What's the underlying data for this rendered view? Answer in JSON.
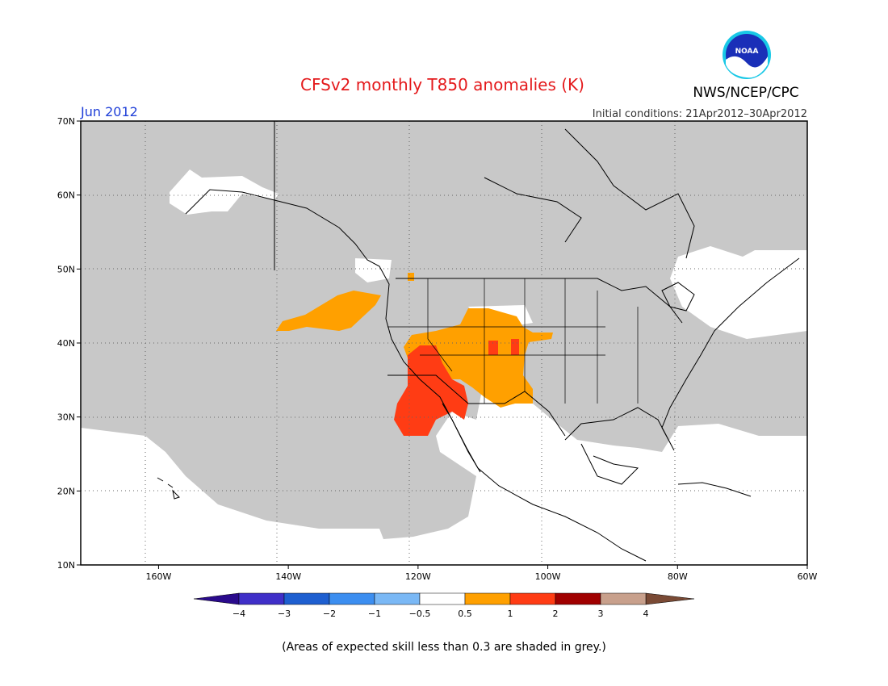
{
  "title": "CFSv2 monthly T850 anomalies (K)",
  "period": "Jun 2012",
  "initial_conditions": "Initial conditions: 21Apr2012–30Apr2012",
  "agency": "NWS/NCEP/CPC",
  "logo_text": "NOAA",
  "footnote": "(Areas of expected skill less than 0.3 are shaded in grey.)",
  "colors": {
    "land_mask_grey": "#c8c8c8",
    "coast_line": "#000000",
    "title_red": "#e41a1c",
    "period_blue": "#1f3fd8"
  },
  "map": {
    "lon_range": [
      -172,
      -60
    ],
    "lat_range": [
      10,
      70
    ],
    "lat_ticks": [
      {
        "value": 70,
        "label": "70N"
      },
      {
        "value": 60,
        "label": "60N"
      },
      {
        "value": 50,
        "label": "50N"
      },
      {
        "value": 40,
        "label": "40N"
      },
      {
        "value": 30,
        "label": "30N"
      },
      {
        "value": 20,
        "label": "20N"
      },
      {
        "value": 10,
        "label": "10N"
      }
    ],
    "lon_ticks": [
      {
        "value": -160,
        "label": "160W"
      },
      {
        "value": -140,
        "label": "140W"
      },
      {
        "value": -120,
        "label": "120W"
      },
      {
        "value": -100,
        "label": "100W"
      },
      {
        "value": -80,
        "label": "80W"
      },
      {
        "value": -60,
        "label": "60W"
      }
    ]
  },
  "legend": {
    "left_arrow_color": "#2a0a8c",
    "right_arrow_color": "#7a4a35",
    "bins": [
      {
        "color": "#3f2fc8",
        "label": "−4"
      },
      {
        "color": "#1e5fd0",
        "label": "−3"
      },
      {
        "color": "#3c8ef0",
        "label": "−2"
      },
      {
        "color": "#7ab8f5",
        "label": "−1"
      },
      {
        "color": "#ffffff",
        "label": "−0.5"
      },
      {
        "color": "#ffa000",
        "label": "0.5"
      },
      {
        "color": "#ff3c14",
        "label": "1"
      },
      {
        "color": "#a00000",
        "label": "2"
      },
      {
        "color": "#c8a08c",
        "label": "3"
      }
    ],
    "last_label": "4"
  }
}
